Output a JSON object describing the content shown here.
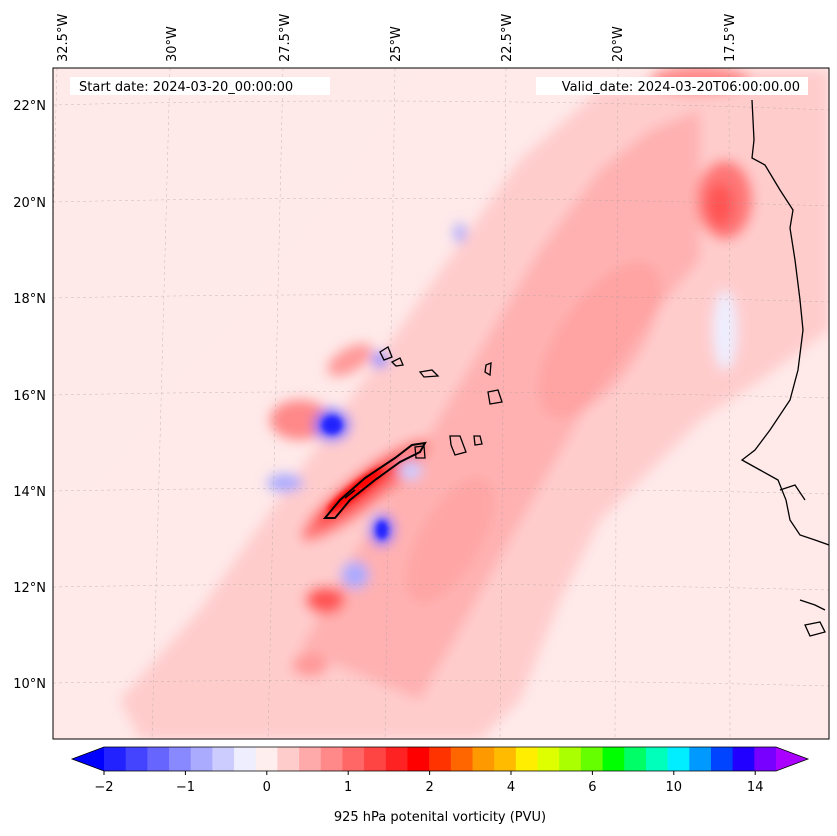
{
  "map": {
    "start_date": "Start date: 2024-03-20_00:00:00",
    "valid_date": "Valid_date: 2024-03-20T06:00:00.00",
    "lon_labels": [
      "32.5°W",
      "30°W",
      "27.5°W",
      "25°W",
      "22.5°W",
      "20°W",
      "17.5°W"
    ],
    "lat_labels": [
      "22°N",
      "20°N",
      "18°N",
      "16°N",
      "14°N",
      "12°N",
      "10°N"
    ]
  },
  "colorbar": {
    "label": "925 hPa potenital vorticity (PVU)",
    "ticks": [
      "−2",
      "−1",
      "0",
      "1",
      "2",
      "4",
      "6",
      "10",
      "14"
    ],
    "colors": [
      "#0000ff",
      "#2222ff",
      "#4444ff",
      "#6666ff",
      "#8888ff",
      "#aaaaff",
      "#ccccff",
      "#eeeeff",
      "#ffeeee",
      "#ffcccc",
      "#ffaaaa",
      "#ff8888",
      "#ff6666",
      "#ff4444",
      "#ff2222",
      "#ff0000",
      "#ff3300",
      "#ff6600",
      "#ff9900",
      "#ffbb00",
      "#ffee00",
      "#ddff00",
      "#aaff00",
      "#66ff00",
      "#00ff00",
      "#00ff66",
      "#00ffbb",
      "#00eeff",
      "#0099ff",
      "#0044ff",
      "#2200ff",
      "#7700ff",
      "#aa00ff"
    ]
  }
}
